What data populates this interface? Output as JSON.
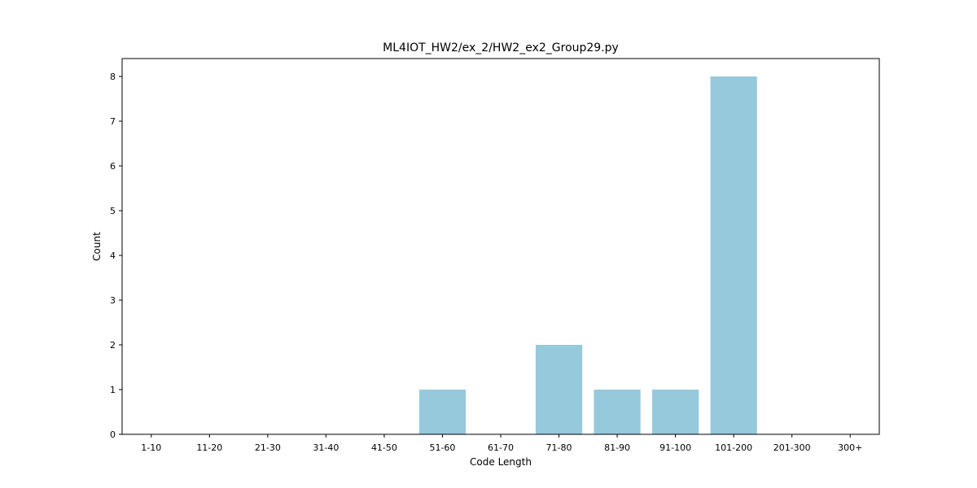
{
  "chart_data": {
    "type": "bar",
    "title": "ML4IOT_HW2/ex_2/HW2_ex2_Group29.py",
    "xlabel": "Code Length",
    "ylabel": "Count",
    "categories": [
      "1-10",
      "11-20",
      "21-30",
      "31-40",
      "41-50",
      "51-60",
      "61-70",
      "71-80",
      "81-90",
      "91-100",
      "101-200",
      "201-300",
      "300+"
    ],
    "values": [
      0,
      0,
      0,
      0,
      0,
      1,
      0,
      2,
      1,
      1,
      8,
      0,
      0
    ],
    "ylim": [
      0,
      8.4
    ],
    "yticks": [
      0,
      1,
      2,
      3,
      4,
      5,
      6,
      7,
      8
    ],
    "bar_color": "#96c9dc",
    "grid": false,
    "legend": "none"
  }
}
